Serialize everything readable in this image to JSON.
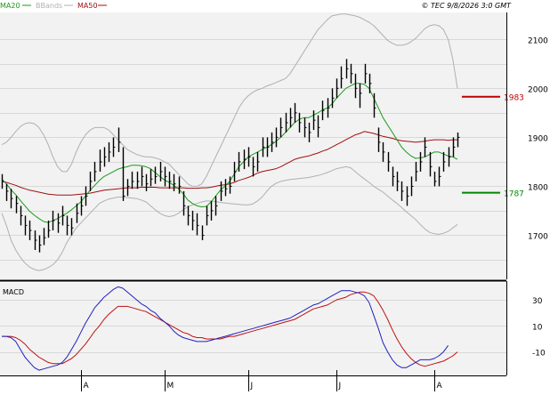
{
  "header": {
    "legend": [
      {
        "label": "MA20",
        "color": "#1a9a1a"
      },
      {
        "label": "BBands",
        "color": "#b0b0b0"
      },
      {
        "label": "MA50",
        "color": "#a01010"
      }
    ],
    "copyright": "© TEC 9/8/2026 3:0 GMT"
  },
  "colors": {
    "background": "#f2f2f2",
    "grid": "#d8d8d8",
    "price": "#000000",
    "ma20": "#1a9a1a",
    "ma50": "#a01010",
    "bbands": "#b0b0b0",
    "macd": "#2020c0",
    "signal": "#c01010",
    "resistance": "#c00000",
    "support": "#008800"
  },
  "chart_data": [
    {
      "type": "line",
      "name": "price-panel",
      "x_labels": [
        "A",
        "M",
        "J",
        "J",
        "A"
      ],
      "y_ticks": [
        1700,
        1800,
        1900,
        2000,
        2100
      ],
      "ylim": [
        1610,
        2155
      ],
      "grid": true,
      "levels": [
        {
          "label": "1983",
          "value": 1983,
          "color": "#c00000"
        },
        {
          "label": "1787",
          "value": 1787,
          "color": "#008800"
        }
      ],
      "price_bars": {
        "close": [
          1810,
          1790,
          1775,
          1765,
          1740,
          1720,
          1710,
          1690,
          1680,
          1695,
          1710,
          1730,
          1725,
          1740,
          1720,
          1715,
          1745,
          1760,
          1780,
          1810,
          1830,
          1850,
          1860,
          1870,
          1880,
          1890,
          1780,
          1800,
          1810,
          1810,
          1820,
          1805,
          1815,
          1820,
          1830,
          1820,
          1810,
          1805,
          1800,
          1760,
          1740,
          1730,
          1720,
          1700,
          1740,
          1750,
          1760,
          1790,
          1795,
          1800,
          1830,
          1850,
          1855,
          1860,
          1840,
          1850,
          1880,
          1880,
          1890,
          1900,
          1920,
          1930,
          1940,
          1950,
          1930,
          1920,
          1910,
          1935,
          1920,
          1955,
          1960,
          1980,
          2000,
          2020,
          2040,
          2030,
          2000,
          1990,
          2030,
          2010,
          1960,
          1890,
          1870,
          1850,
          1820,
          1810,
          1790,
          1780,
          1800,
          1830,
          1850,
          1880,
          1840,
          1810,
          1820,
          1850,
          1860,
          1880,
          1900
        ],
        "high": [
          1825,
          1805,
          1795,
          1780,
          1760,
          1740,
          1730,
          1710,
          1700,
          1715,
          1730,
          1750,
          1745,
          1760,
          1740,
          1735,
          1765,
          1780,
          1800,
          1830,
          1850,
          1875,
          1880,
          1890,
          1900,
          1920,
          1880,
          1815,
          1830,
          1830,
          1840,
          1825,
          1835,
          1840,
          1850,
          1840,
          1830,
          1825,
          1820,
          1790,
          1760,
          1750,
          1745,
          1720,
          1760,
          1770,
          1780,
          1810,
          1815,
          1820,
          1850,
          1870,
          1875,
          1880,
          1860,
          1870,
          1900,
          1900,
          1910,
          1920,
          1940,
          1950,
          1960,
          1970,
          1950,
          1940,
          1930,
          1955,
          1945,
          1975,
          1980,
          2000,
          2020,
          2045,
          2060,
          2050,
          2030,
          2010,
          2050,
          2030,
          1990,
          1920,
          1890,
          1870,
          1840,
          1830,
          1810,
          1800,
          1820,
          1850,
          1870,
          1900,
          1870,
          1830,
          1840,
          1870,
          1880,
          1900,
          1910
        ],
        "low": [
          1795,
          1770,
          1755,
          1745,
          1720,
          1700,
          1690,
          1670,
          1665,
          1680,
          1695,
          1710,
          1705,
          1720,
          1700,
          1700,
          1725,
          1740,
          1760,
          1790,
          1810,
          1830,
          1840,
          1850,
          1860,
          1870,
          1770,
          1780,
          1795,
          1795,
          1800,
          1790,
          1800,
          1805,
          1810,
          1800,
          1795,
          1790,
          1785,
          1740,
          1720,
          1710,
          1700,
          1690,
          1720,
          1730,
          1740,
          1770,
          1780,
          1785,
          1810,
          1830,
          1835,
          1840,
          1820,
          1830,
          1860,
          1860,
          1870,
          1880,
          1900,
          1910,
          1920,
          1930,
          1910,
          1900,
          1890,
          1915,
          1900,
          1935,
          1940,
          1960,
          1980,
          2000,
          2020,
          2010,
          1980,
          1960,
          2010,
          1990,
          1940,
          1870,
          1850,
          1830,
          1800,
          1790,
          1770,
          1760,
          1780,
          1810,
          1830,
          1860,
          1820,
          1800,
          1800,
          1830,
          1840,
          1860,
          1880
        ]
      },
      "series": [
        {
          "name": "MA20",
          "values": [
            1815,
            1805,
            1793,
            1783,
            1771,
            1760,
            1749,
            1741,
            1734,
            1728,
            1726,
            1730,
            1734,
            1740,
            1745,
            1752,
            1760,
            1768,
            1780,
            1792,
            1802,
            1812,
            1820,
            1825,
            1830,
            1835,
            1838,
            1840,
            1843,
            1843,
            1842,
            1840,
            1836,
            1828,
            1820,
            1813,
            1808,
            1802,
            1795,
            1785,
            1772,
            1765,
            1760,
            1758,
            1759,
            1768,
            1780,
            1792,
            1800,
            1810,
            1825,
            1840,
            1850,
            1860,
            1865,
            1870,
            1875,
            1880,
            1885,
            1892,
            1900,
            1910,
            1920,
            1930,
            1937,
            1940,
            1940,
            1945,
            1950,
            1956,
            1960,
            1968,
            1980,
            1990,
            2000,
            2005,
            2010,
            2010,
            2008,
            2000,
            1980,
            1960,
            1940,
            1925,
            1910,
            1895,
            1880,
            1870,
            1862,
            1857,
            1858,
            1860,
            1865,
            1870,
            1870,
            1866,
            1862,
            1860,
            1855
          ]
        },
        {
          "name": "MA50",
          "values": [
            1810,
            1808,
            1805,
            1802,
            1798,
            1795,
            1792,
            1790,
            1788,
            1786,
            1784,
            1783,
            1782,
            1782,
            1782,
            1782,
            1783,
            1784,
            1785,
            1786,
            1788,
            1790,
            1792,
            1793,
            1794,
            1795,
            1796,
            1797,
            1797,
            1797,
            1798,
            1798,
            1798,
            1798,
            1797,
            1797,
            1797,
            1797,
            1797,
            1797,
            1796,
            1796,
            1796,
            1797,
            1797,
            1798,
            1800,
            1802,
            1803,
            1805,
            1808,
            1812,
            1815,
            1818,
            1822,
            1827,
            1830,
            1832,
            1834,
            1836,
            1840,
            1845,
            1850,
            1855,
            1858,
            1860,
            1862,
            1865,
            1868,
            1872,
            1875,
            1880,
            1885,
            1890,
            1895,
            1900,
            1905,
            1908,
            1912,
            1910,
            1908,
            1905,
            1902,
            1900,
            1898,
            1895,
            1893,
            1892,
            1891,
            1890,
            1891,
            1892,
            1894,
            1895,
            1895,
            1895,
            1894,
            1895,
            1895
          ]
        },
        {
          "name": "BBands upper",
          "values": [
            1885,
            1890,
            1900,
            1912,
            1922,
            1928,
            1930,
            1928,
            1920,
            1905,
            1885,
            1860,
            1840,
            1830,
            1830,
            1845,
            1870,
            1890,
            1905,
            1915,
            1920,
            1920,
            1920,
            1915,
            1905,
            1895,
            1885,
            1875,
            1870,
            1865,
            1862,
            1860,
            1860,
            1858,
            1855,
            1850,
            1845,
            1835,
            1825,
            1815,
            1805,
            1800,
            1800,
            1805,
            1820,
            1840,
            1860,
            1880,
            1900,
            1920,
            1940,
            1960,
            1975,
            1985,
            1992,
            1997,
            2000,
            2005,
            2008,
            2012,
            2016,
            2020,
            2030,
            2045,
            2060,
            2075,
            2090,
            2105,
            2120,
            2130,
            2140,
            2148,
            2150,
            2152,
            2152,
            2150,
            2148,
            2145,
            2140,
            2135,
            2128,
            2118,
            2108,
            2098,
            2092,
            2088,
            2088,
            2090,
            2095,
            2102,
            2112,
            2122,
            2128,
            2130,
            2128,
            2120,
            2100,
            2060,
            2000
          ]
        },
        {
          "name": "BBands lower",
          "values": [
            1745,
            1720,
            1690,
            1670,
            1655,
            1643,
            1635,
            1630,
            1628,
            1630,
            1634,
            1640,
            1650,
            1665,
            1685,
            1700,
            1715,
            1725,
            1735,
            1745,
            1755,
            1765,
            1770,
            1774,
            1776,
            1778,
            1778,
            1777,
            1776,
            1775,
            1772,
            1768,
            1760,
            1752,
            1745,
            1740,
            1738,
            1740,
            1745,
            1752,
            1758,
            1762,
            1765,
            1768,
            1770,
            1770,
            1769,
            1767,
            1766,
            1765,
            1764,
            1763,
            1762,
            1762,
            1764,
            1770,
            1778,
            1790,
            1800,
            1806,
            1810,
            1812,
            1814,
            1815,
            1816,
            1817,
            1818,
            1820,
            1822,
            1825,
            1828,
            1832,
            1836,
            1838,
            1840,
            1838,
            1830,
            1822,
            1815,
            1808,
            1800,
            1794,
            1788,
            1780,
            1772,
            1765,
            1757,
            1748,
            1740,
            1732,
            1722,
            1713,
            1706,
            1703,
            1702,
            1704,
            1708,
            1715,
            1722
          ]
        }
      ]
    },
    {
      "type": "line",
      "name": "macd-panel",
      "title": "MACD",
      "y_ticks": [
        30,
        10,
        -10
      ],
      "ylim": [
        -28,
        43
      ],
      "series": [
        {
          "name": "MACD",
          "values": [
            2,
            2,
            1,
            -2,
            -8,
            -14,
            -18,
            -22,
            -24,
            -23,
            -22,
            -21,
            -20,
            -18,
            -14,
            -8,
            -2,
            5,
            12,
            18,
            24,
            28,
            32,
            35,
            38,
            40,
            39,
            36,
            33,
            30,
            27,
            25,
            22,
            20,
            16,
            13,
            10,
            6,
            3,
            1,
            0,
            -1,
            -2,
            -2,
            -2,
            -1,
            0,
            1,
            2,
            3,
            4,
            5,
            6,
            7,
            8,
            9,
            10,
            11,
            12,
            13,
            14,
            15,
            16,
            18,
            20,
            22,
            24,
            26,
            27,
            29,
            31,
            33,
            35,
            37,
            37,
            37,
            36,
            35,
            33,
            28,
            18,
            8,
            -3,
            -10,
            -16,
            -20,
            -22,
            -22,
            -20,
            -18,
            -16,
            -16,
            -16,
            -15,
            -13,
            -10,
            -5
          ]
        },
        {
          "name": "Signal",
          "values": [
            2,
            2,
            2,
            1,
            -1,
            -4,
            -8,
            -11,
            -14,
            -16,
            -18,
            -19,
            -19,
            -19,
            -17,
            -15,
            -12,
            -8,
            -4,
            1,
            6,
            10,
            15,
            19,
            22,
            25,
            25,
            25,
            24,
            23,
            22,
            21,
            19,
            17,
            15,
            13,
            11,
            9,
            7,
            5,
            4,
            2,
            1,
            1,
            0,
            0,
            0,
            0,
            1,
            2,
            2,
            3,
            4,
            5,
            6,
            7,
            8,
            9,
            10,
            11,
            12,
            13,
            14,
            15,
            17,
            19,
            21,
            23,
            24,
            25,
            26,
            28,
            30,
            31,
            32,
            34,
            35,
            36,
            36,
            35,
            33,
            28,
            22,
            15,
            7,
            0,
            -6,
            -11,
            -15,
            -18,
            -20,
            -21,
            -20,
            -19,
            -18,
            -17,
            -15,
            -13,
            -10
          ]
        }
      ]
    }
  ]
}
